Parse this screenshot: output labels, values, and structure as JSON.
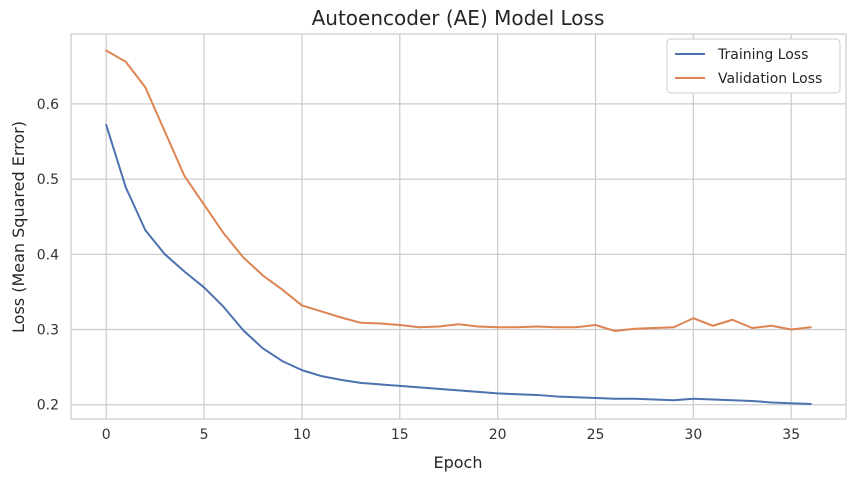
{
  "chart_data": {
    "type": "line",
    "title": "Autoencoder (AE) Model Loss",
    "xlabel": "Epoch",
    "ylabel": "Loss (Mean Squared Error)",
    "xlim": [
      -1.8,
      37.8
    ],
    "ylim": [
      0.181,
      0.693
    ],
    "xticks": [
      0,
      5,
      10,
      15,
      20,
      25,
      30,
      35
    ],
    "yticks": [
      0.2,
      0.3,
      0.4,
      0.5,
      0.6
    ],
    "ytick_labels": [
      "0.2",
      "0.3",
      "0.4",
      "0.5",
      "0.6"
    ],
    "grid": true,
    "legend_position": "top-right",
    "x": [
      0,
      1,
      2,
      3,
      4,
      5,
      6,
      7,
      8,
      9,
      10,
      11,
      12,
      13,
      14,
      15,
      16,
      17,
      18,
      19,
      20,
      21,
      22,
      23,
      24,
      25,
      26,
      27,
      28,
      29,
      30,
      31,
      32,
      33,
      34,
      35,
      36
    ],
    "series": [
      {
        "name": "Training Loss",
        "color": "#4c72b0",
        "values": [
          0.572,
          0.489,
          0.432,
          0.4,
          0.377,
          0.356,
          0.33,
          0.299,
          0.275,
          0.258,
          0.246,
          0.238,
          0.233,
          0.229,
          0.227,
          0.225,
          0.223,
          0.221,
          0.219,
          0.217,
          0.215,
          0.214,
          0.213,
          0.211,
          0.21,
          0.209,
          0.208,
          0.208,
          0.207,
          0.206,
          0.208,
          0.207,
          0.206,
          0.205,
          0.203,
          0.202,
          0.201
        ]
      },
      {
        "name": "Validation Loss",
        "color": "#dd8452",
        "values": [
          0.671,
          0.656,
          0.622,
          0.563,
          0.504,
          0.466,
          0.428,
          0.396,
          0.372,
          0.353,
          0.332,
          0.324,
          0.316,
          0.309,
          0.308,
          0.306,
          0.303,
          0.304,
          0.307,
          0.304,
          0.303,
          0.303,
          0.304,
          0.303,
          0.303,
          0.306,
          0.298,
          0.301,
          0.302,
          0.303,
          0.315,
          0.305,
          0.313,
          0.302,
          0.305,
          0.3,
          0.303
        ]
      }
    ]
  }
}
